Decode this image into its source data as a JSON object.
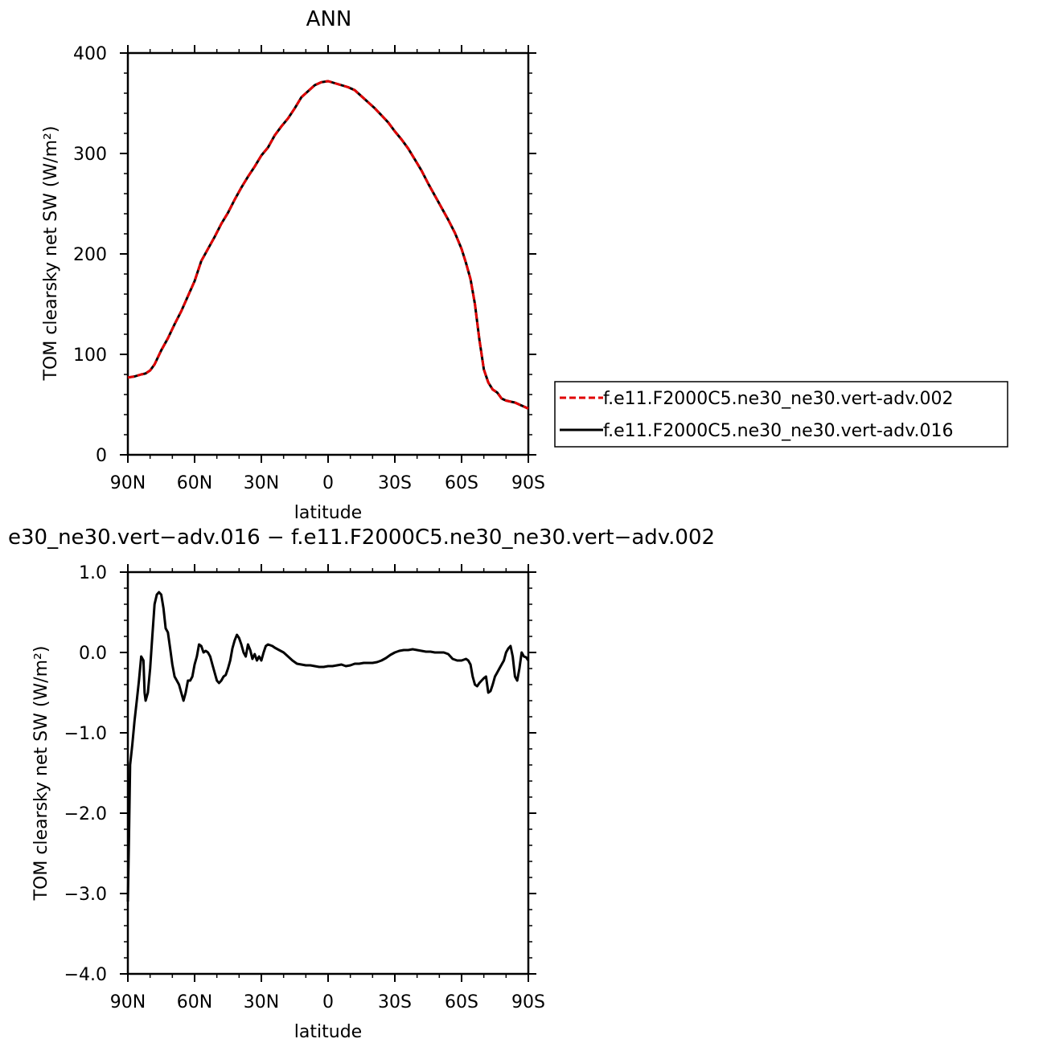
{
  "chart_data": [
    {
      "type": "line",
      "title": "ANN",
      "xlabel": "latitude",
      "ylabel": "TOM clearsky net SW (W/m²)",
      "x_tick_labels": [
        "90N",
        "60N",
        "30N",
        "0",
        "30S",
        "60S",
        "90S"
      ],
      "y_tick_labels": [
        "0",
        "100",
        "200",
        "300",
        "400"
      ],
      "ylim": [
        0,
        400
      ],
      "xlim": [
        90,
        -90
      ],
      "grid": false,
      "legend_position": "right",
      "series": [
        {
          "name": "f.e11.F2000C5.ne30_ne30.vert-adv.002",
          "color": "#e00000",
          "style": "dashed",
          "x": [
            90,
            87,
            84,
            82,
            80,
            78,
            75,
            72,
            69,
            66,
            63,
            60,
            57,
            54,
            51,
            48,
            45,
            42,
            39,
            36,
            33,
            30,
            27,
            24,
            21,
            18,
            15,
            12,
            9,
            6,
            3,
            0,
            -3,
            -6,
            -9,
            -12,
            -15,
            -18,
            -21,
            -24,
            -27,
            -30,
            -33,
            -36,
            -39,
            -42,
            -45,
            -48,
            -51,
            -54,
            -57,
            -60,
            -62,
            -64,
            -66,
            -68,
            -70,
            -72,
            -74,
            -76,
            -78,
            -80,
            -82,
            -84,
            -86,
            -88,
            -90
          ],
          "values": [
            77,
            78,
            80,
            81,
            84,
            90,
            104,
            116,
            130,
            143,
            158,
            173,
            193,
            205,
            217,
            230,
            241,
            254,
            266,
            277,
            287,
            298,
            306,
            318,
            327,
            335,
            345,
            356,
            362,
            368,
            371,
            372,
            370,
            368,
            366,
            363,
            357,
            351,
            345,
            338,
            331,
            322,
            314,
            305,
            294,
            283,
            270,
            258,
            246,
            234,
            221,
            205,
            191,
            175,
            150,
            115,
            85,
            72,
            65,
            62,
            56,
            54,
            53,
            52,
            50,
            48,
            46
          ]
        },
        {
          "name": "f.e11.F2000C5.ne30_ne30.vert-adv.016",
          "color": "#000000",
          "style": "solid",
          "x": [
            90,
            87,
            84,
            82,
            80,
            78,
            75,
            72,
            69,
            66,
            63,
            60,
            57,
            54,
            51,
            48,
            45,
            42,
            39,
            36,
            33,
            30,
            27,
            24,
            21,
            18,
            15,
            12,
            9,
            6,
            3,
            0,
            -3,
            -6,
            -9,
            -12,
            -15,
            -18,
            -21,
            -24,
            -27,
            -30,
            -33,
            -36,
            -39,
            -42,
            -45,
            -48,
            -51,
            -54,
            -57,
            -60,
            -62,
            -64,
            -66,
            -68,
            -70,
            -72,
            -74,
            -76,
            -78,
            -80,
            -82,
            -84,
            -86,
            -88,
            -90
          ],
          "values": [
            77,
            78,
            80,
            81,
            84,
            90,
            104,
            116,
            130,
            143,
            158,
            173,
            193,
            205,
            217,
            230,
            241,
            254,
            266,
            277,
            287,
            298,
            306,
            318,
            327,
            335,
            345,
            356,
            362,
            368,
            371,
            372,
            370,
            368,
            366,
            363,
            357,
            351,
            345,
            338,
            331,
            322,
            314,
            305,
            294,
            283,
            270,
            258,
            246,
            234,
            221,
            205,
            191,
            175,
            150,
            115,
            85,
            72,
            65,
            62,
            56,
            54,
            53,
            52,
            50,
            48,
            46
          ]
        }
      ]
    },
    {
      "type": "line",
      "title": "e30_ne30.vert−adv.016 − f.e11.F2000C5.ne30_ne30.vert−adv.002",
      "xlabel": "latitude",
      "ylabel": "TOM clearsky net SW (W/m²)",
      "x_tick_labels": [
        "90N",
        "60N",
        "30N",
        "0",
        "30S",
        "60S",
        "90S"
      ],
      "y_tick_labels": [
        "1.0",
        "0.0",
        "−1.0",
        "−2.0",
        "−3.0",
        "−4.0"
      ],
      "ylim": [
        -4,
        1
      ],
      "xlim": [
        90,
        -90
      ],
      "grid": false,
      "series": [
        {
          "color": "#000000",
          "x": [
            90,
            89.5,
            89,
            88,
            87,
            86,
            85,
            84,
            83,
            82.5,
            82,
            81,
            80,
            79,
            78,
            77,
            76,
            75,
            74,
            73,
            72,
            71,
            70,
            69,
            68,
            67,
            66,
            65,
            64,
            63,
            62,
            61,
            60,
            59,
            58,
            57,
            56,
            55,
            54,
            53,
            52,
            51,
            50,
            49,
            48,
            47,
            46,
            45,
            44,
            43,
            42,
            41,
            40,
            39,
            38,
            37,
            36,
            35,
            34,
            33,
            32,
            31,
            30,
            29,
            28,
            27,
            26,
            25,
            24,
            22,
            20,
            18,
            16,
            14,
            12,
            10,
            8,
            6,
            4,
            2,
            0,
            -2,
            -4,
            -6,
            -8,
            -10,
            -12,
            -14,
            -16,
            -18,
            -20,
            -22,
            -24,
            -26,
            -28,
            -30,
            -32,
            -34,
            -36,
            -38,
            -40,
            -42,
            -44,
            -46,
            -48,
            -50,
            -52,
            -54,
            -56,
            -58,
            -60,
            -61,
            -62,
            -63,
            -64,
            -65,
            -66,
            -67,
            -68,
            -69,
            -70,
            -71,
            -72,
            -73,
            -74,
            -75,
            -76,
            -77,
            -78,
            -79,
            -80,
            -81,
            -82,
            -83,
            -84,
            -85,
            -86,
            -87,
            -88,
            -89,
            -90
          ],
          "values": [
            -3.1,
            -2.3,
            -1.4,
            -1.15,
            -0.85,
            -0.6,
            -0.35,
            -0.05,
            -0.1,
            -0.5,
            -0.6,
            -0.5,
            -0.2,
            0.2,
            0.6,
            0.72,
            0.75,
            0.72,
            0.55,
            0.3,
            0.25,
            0.05,
            -0.15,
            -0.3,
            -0.35,
            -0.4,
            -0.5,
            -0.6,
            -0.5,
            -0.35,
            -0.35,
            -0.3,
            -0.15,
            -0.05,
            0.1,
            0.08,
            0.0,
            0.02,
            0.0,
            -0.05,
            -0.15,
            -0.25,
            -0.35,
            -0.38,
            -0.35,
            -0.3,
            -0.28,
            -0.2,
            -0.1,
            0.05,
            0.15,
            0.22,
            0.18,
            0.1,
            0.0,
            -0.05,
            0.1,
            0.03,
            -0.08,
            -0.02,
            -0.1,
            -0.05,
            -0.1,
            0.0,
            0.08,
            0.1,
            0.09,
            0.08,
            0.06,
            0.03,
            0.0,
            -0.05,
            -0.1,
            -0.14,
            -0.15,
            -0.16,
            -0.16,
            -0.17,
            -0.18,
            -0.18,
            -0.17,
            -0.17,
            -0.16,
            -0.15,
            -0.17,
            -0.16,
            -0.14,
            -0.14,
            -0.13,
            -0.13,
            -0.13,
            -0.12,
            -0.1,
            -0.07,
            -0.03,
            0.0,
            0.02,
            0.03,
            0.03,
            0.04,
            0.03,
            0.02,
            0.01,
            0.01,
            0.0,
            0.0,
            0.0,
            -0.02,
            -0.08,
            -0.1,
            -0.1,
            -0.09,
            -0.08,
            -0.1,
            -0.15,
            -0.3,
            -0.4,
            -0.42,
            -0.38,
            -0.35,
            -0.32,
            -0.3,
            -0.5,
            -0.48,
            -0.4,
            -0.3,
            -0.25,
            -0.2,
            -0.15,
            -0.1,
            0.0,
            0.05,
            0.08,
            -0.05,
            -0.3,
            -0.35,
            -0.2,
            0.0,
            -0.05,
            -0.06,
            -0.1
          ]
        }
      ]
    }
  ]
}
